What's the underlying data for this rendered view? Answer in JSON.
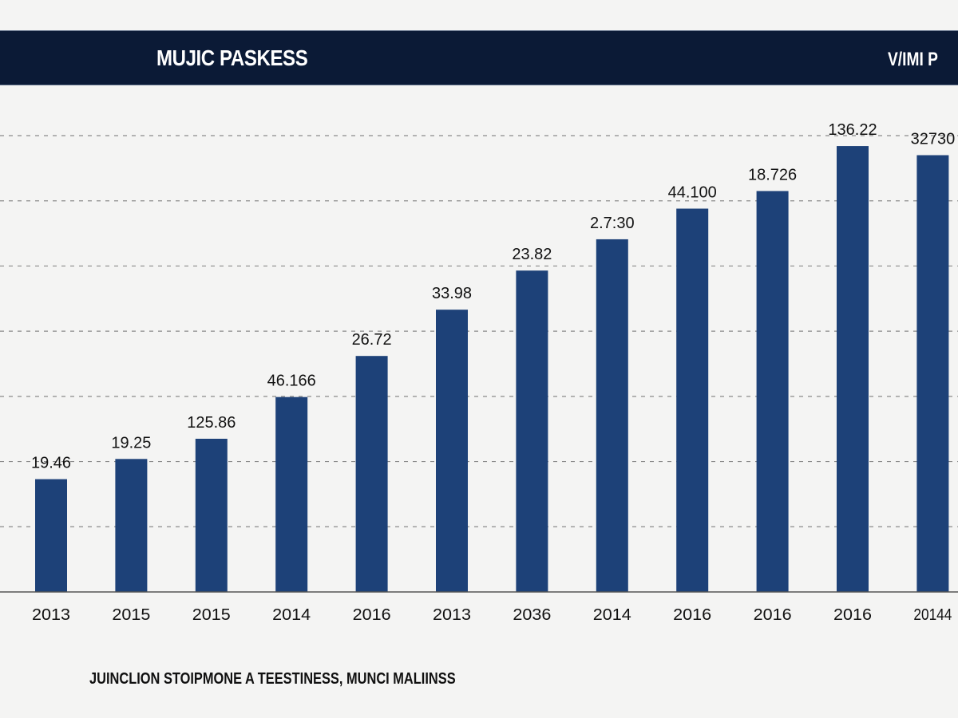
{
  "header": {
    "title": "MUJIC PASKESS",
    "right_text": "V/IMI P"
  },
  "footnote": "JUINCLION STOIPMONE A TEESTINESS, MUNCI MALIINSS",
  "colors": {
    "header_bg": "#0b1a36",
    "bar": "#1d4178",
    "background": "#f4f4f3",
    "grid": "#8a8a8a"
  },
  "chart_data": {
    "type": "bar",
    "title": "MUJIC PASKESS",
    "categories": [
      "2013",
      "2015",
      "2015",
      "2014",
      "2016",
      "2013",
      "2036",
      "2014",
      "2016",
      "2016",
      "2016",
      "20144"
    ],
    "values": [
      1.73,
      2.04,
      2.35,
      2.99,
      3.62,
      4.33,
      4.93,
      5.41,
      5.88,
      6.15,
      6.84,
      6.7
    ],
    "data_labels": [
      "19.46",
      "19.25",
      "125.86",
      "46.166",
      "26.72",
      "33.98",
      "23.82",
      "2.7:30",
      "44.100",
      "18.726",
      "136.22",
      "32730"
    ],
    "ylim": [
      0,
      7
    ],
    "grid": true,
    "grid_style": "dashed-horizontal",
    "xlabel": "",
    "ylabel": "",
    "legend": "none"
  }
}
